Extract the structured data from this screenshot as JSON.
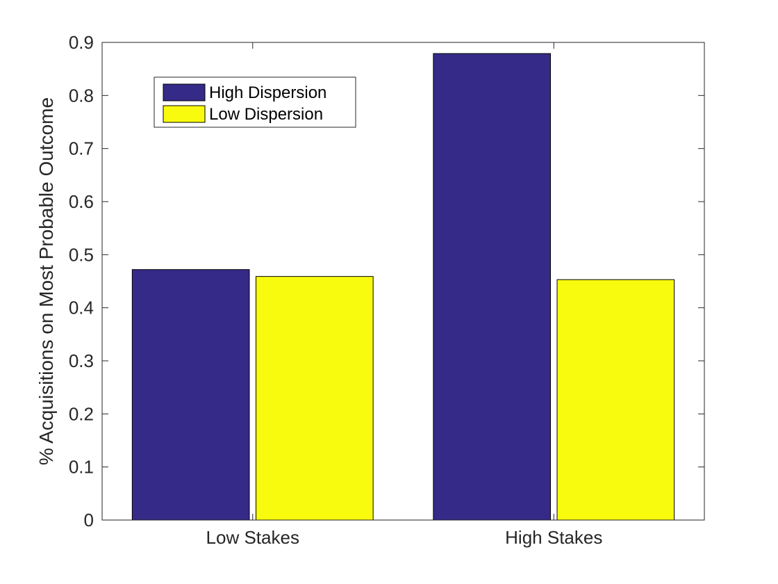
{
  "chart_data": {
    "type": "bar",
    "title": "",
    "xlabel": "",
    "ylabel": "% Acquisitions on Most Probable Outcome",
    "categories": [
      "Low Stakes",
      "High Stakes"
    ],
    "series": [
      {
        "name": "High Dispersion",
        "values": [
          0.472,
          0.879
        ],
        "color": "#352a87"
      },
      {
        "name": "Low Dispersion",
        "values": [
          0.459,
          0.453
        ],
        "color": "#f9fb0e"
      }
    ],
    "ylim": [
      0,
      0.9
    ],
    "yticks": [
      "0",
      "0.1",
      "0.2",
      "0.3",
      "0.4",
      "0.5",
      "0.6",
      "0.7",
      "0.8",
      "0.9"
    ],
    "grid": false,
    "legend_position": "top-left"
  }
}
